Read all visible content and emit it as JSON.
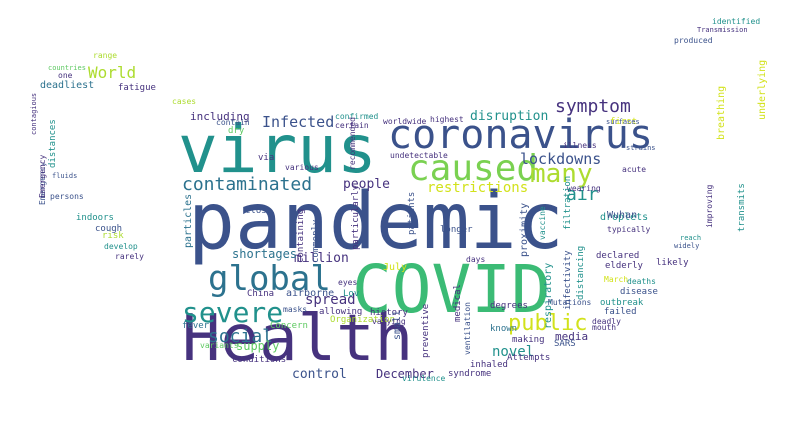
{
  "palette": {
    "dark_purple": "#440154",
    "purple": "#46327e",
    "indigo": "#3b528b",
    "blue": "#365c8d",
    "teal_blue": "#2c728e",
    "teal": "#21918c",
    "green": "#28ae80",
    "bright_green": "#3bbb75",
    "lime": "#5ec962",
    "yellow_green": "#addc30",
    "yellow": "#d2e21b"
  },
  "words": [
    {
      "text": "pandemic",
      "color": "#3b528b"
    },
    {
      "text": "Health",
      "color": "#46327e"
    },
    {
      "text": "COVID",
      "color": "#3bbb75"
    },
    {
      "text": "virus",
      "color": "#21918c"
    },
    {
      "text": "coronavirus",
      "color": "#3b528b"
    },
    {
      "text": "caused",
      "color": "#7ad151"
    },
    {
      "text": "global",
      "color": "#2c728e"
    },
    {
      "text": "severe",
      "color": "#21918c"
    },
    {
      "text": "contaminated",
      "color": "#2c728e"
    },
    {
      "text": "many",
      "color": "#addc30"
    },
    {
      "text": "public",
      "color": "#d2e21b"
    },
    {
      "text": "symptom",
      "color": "#46327e"
    },
    {
      "text": "lockdowns",
      "color": "#3b528b"
    },
    {
      "text": "social",
      "color": "#2c728e"
    },
    {
      "text": "people",
      "color": "#46327e"
    },
    {
      "text": "Infected",
      "color": "#3b528b"
    },
    {
      "text": "World",
      "color": "#addc30"
    },
    {
      "text": "restrictions",
      "color": "#d2e21b"
    },
    {
      "text": "disruption",
      "color": "#21918c"
    },
    {
      "text": "spread",
      "color": "#46327e"
    },
    {
      "text": "million",
      "color": "#46327e"
    },
    {
      "text": "air",
      "color": "#21918c"
    },
    {
      "text": "control",
      "color": "#3b528b"
    },
    {
      "text": "December",
      "color": "#46327e"
    },
    {
      "text": "novel",
      "color": "#21918c"
    },
    {
      "text": "shortages",
      "color": "#2c728e"
    },
    {
      "text": "supply",
      "color": "#5ec962"
    },
    {
      "text": "media",
      "color": "#46327e"
    },
    {
      "text": "including",
      "color": "#46327e"
    },
    {
      "text": "droplets",
      "color": "#21918c"
    },
    {
      "text": "deadliest",
      "color": "#2c728e"
    },
    {
      "text": "fatigue",
      "color": "#46327e"
    },
    {
      "text": "range",
      "color": "#addc30"
    },
    {
      "text": "countries",
      "color": "#5ec962"
    },
    {
      "text": "contagious",
      "color": "#46327e"
    },
    {
      "text": "distances",
      "color": "#21918c"
    },
    {
      "text": "Emergency",
      "color": "#3b528b"
    },
    {
      "text": "fluids",
      "color": "#3b528b"
    },
    {
      "text": "persons",
      "color": "#3b528b"
    },
    {
      "text": "indoors",
      "color": "#21918c"
    },
    {
      "text": "cough",
      "color": "#3b528b"
    },
    {
      "text": "risk",
      "color": "#addc30"
    },
    {
      "text": "develop",
      "color": "#21918c"
    },
    {
      "text": "rarely",
      "color": "#46327e"
    },
    {
      "text": "cases",
      "color": "#addc30"
    },
    {
      "text": "particles",
      "color": "#2c728e"
    },
    {
      "text": "dry",
      "color": "#5ec962"
    },
    {
      "text": "contain",
      "color": "#3b528b"
    },
    {
      "text": "via",
      "color": "#46327e"
    },
    {
      "text": "close",
      "color": "#3b528b"
    },
    {
      "text": "China",
      "color": "#46327e"
    },
    {
      "text": "fever",
      "color": "#2c728e"
    },
    {
      "text": "conditions",
      "color": "#46327e"
    },
    {
      "text": "variants",
      "color": "#5ec962"
    },
    {
      "text": "airborne",
      "color": "#3b528b"
    },
    {
      "text": "Concern",
      "color": "#5ec962"
    },
    {
      "text": "masks",
      "color": "#3b528b"
    },
    {
      "text": "allowing",
      "color": "#46327e"
    },
    {
      "text": "Lov",
      "color": "#21918c"
    },
    {
      "text": "confirmed",
      "color": "#21918c"
    },
    {
      "text": "certain",
      "color": "#46327e"
    },
    {
      "text": "worldwide",
      "color": "#46327e"
    },
    {
      "text": "highest",
      "color": "#46327e"
    },
    {
      "text": "undetectable",
      "color": "#46327e"
    },
    {
      "text": "various",
      "color": "#46327e"
    },
    {
      "text": "containing",
      "color": "#46327e"
    },
    {
      "text": "commonly",
      "color": "#3b528b"
    },
    {
      "text": "particularly",
      "color": "#46327e"
    },
    {
      "text": "recommended",
      "color": "#46327e"
    },
    {
      "text": "Organization",
      "color": "#addc30"
    },
    {
      "text": "history",
      "color": "#46327e"
    },
    {
      "text": "varying",
      "color": "#46327e"
    },
    {
      "text": "eyes",
      "color": "#46327e"
    },
    {
      "text": "July",
      "color": "#d2e21b"
    },
    {
      "text": "patients",
      "color": "#3b528b"
    },
    {
      "text": "longer",
      "color": "#3b528b"
    },
    {
      "text": "proximity",
      "color": "#3b528b"
    },
    {
      "text": "vaccine",
      "color": "#21918c"
    },
    {
      "text": "infectivity",
      "color": "#3b528b"
    },
    {
      "text": "respiratory",
      "color": "#21918c"
    },
    {
      "text": "distancing",
      "color": "#21918c"
    },
    {
      "text": "Mutations",
      "color": "#3b528b"
    },
    {
      "text": "wearing",
      "color": "#46327e"
    },
    {
      "text": "illness",
      "color": "#46327e"
    },
    {
      "text": "first",
      "color": "#d2e21b"
    },
    {
      "text": "acute",
      "color": "#46327e"
    },
    {
      "text": "Wuhan",
      "color": "#3b528b"
    },
    {
      "text": "typically",
      "color": "#46327e"
    },
    {
      "text": "filtration",
      "color": "#21918c"
    },
    {
      "text": "declared",
      "color": "#46327e"
    },
    {
      "text": "elderly",
      "color": "#46327e"
    },
    {
      "text": "deaths",
      "color": "#21918c"
    },
    {
      "text": "March",
      "color": "#d2e21b"
    },
    {
      "text": "disease",
      "color": "#3b528b"
    },
    {
      "text": "outbreak",
      "color": "#21918c"
    },
    {
      "text": "failed",
      "color": "#3b528b"
    },
    {
      "text": "mouth",
      "color": "#46327e"
    },
    {
      "text": "deadly",
      "color": "#46327e"
    },
    {
      "text": "SARS",
      "color": "#3b528b"
    },
    {
      "text": "making",
      "color": "#46327e"
    },
    {
      "text": "Attempts",
      "color": "#46327e"
    },
    {
      "text": "inhaled",
      "color": "#46327e"
    },
    {
      "text": "syndrome",
      "color": "#46327e"
    },
    {
      "text": "ventilation",
      "color": "#3b528b"
    },
    {
      "text": "medical",
      "color": "#46327e"
    },
    {
      "text": "preventive",
      "color": "#46327e"
    },
    {
      "text": "small",
      "color": "#3b528b"
    },
    {
      "text": "known",
      "color": "#2c728e"
    },
    {
      "text": "degrees",
      "color": "#46327e"
    },
    {
      "text": "days",
      "color": "#46327e"
    },
    {
      "text": "virulence",
      "color": "#21918c"
    },
    {
      "text": "likely",
      "color": "#46327e"
    },
    {
      "text": "improving",
      "color": "#46327e"
    },
    {
      "text": "transmits",
      "color": "#21918c"
    },
    {
      "text": "breathing",
      "color": "#d2e21b"
    },
    {
      "text": "underlying",
      "color": "#d2e21b"
    },
    {
      "text": "identified",
      "color": "#21918c"
    },
    {
      "text": "Transmission",
      "color": "#46327e"
    },
    {
      "text": "produced",
      "color": "#3b528b"
    },
    {
      "text": "surfaces",
      "color": "#3b528b"
    },
    {
      "text": "strains",
      "color": "#3b528b"
    },
    {
      "text": "reach",
      "color": "#21918c"
    },
    {
      "text": "widely",
      "color": "#3b528b"
    },
    {
      "text": "one",
      "color": "#46327e"
    },
    {
      "text": "Emergency",
      "color": "#46327e"
    }
  ]
}
